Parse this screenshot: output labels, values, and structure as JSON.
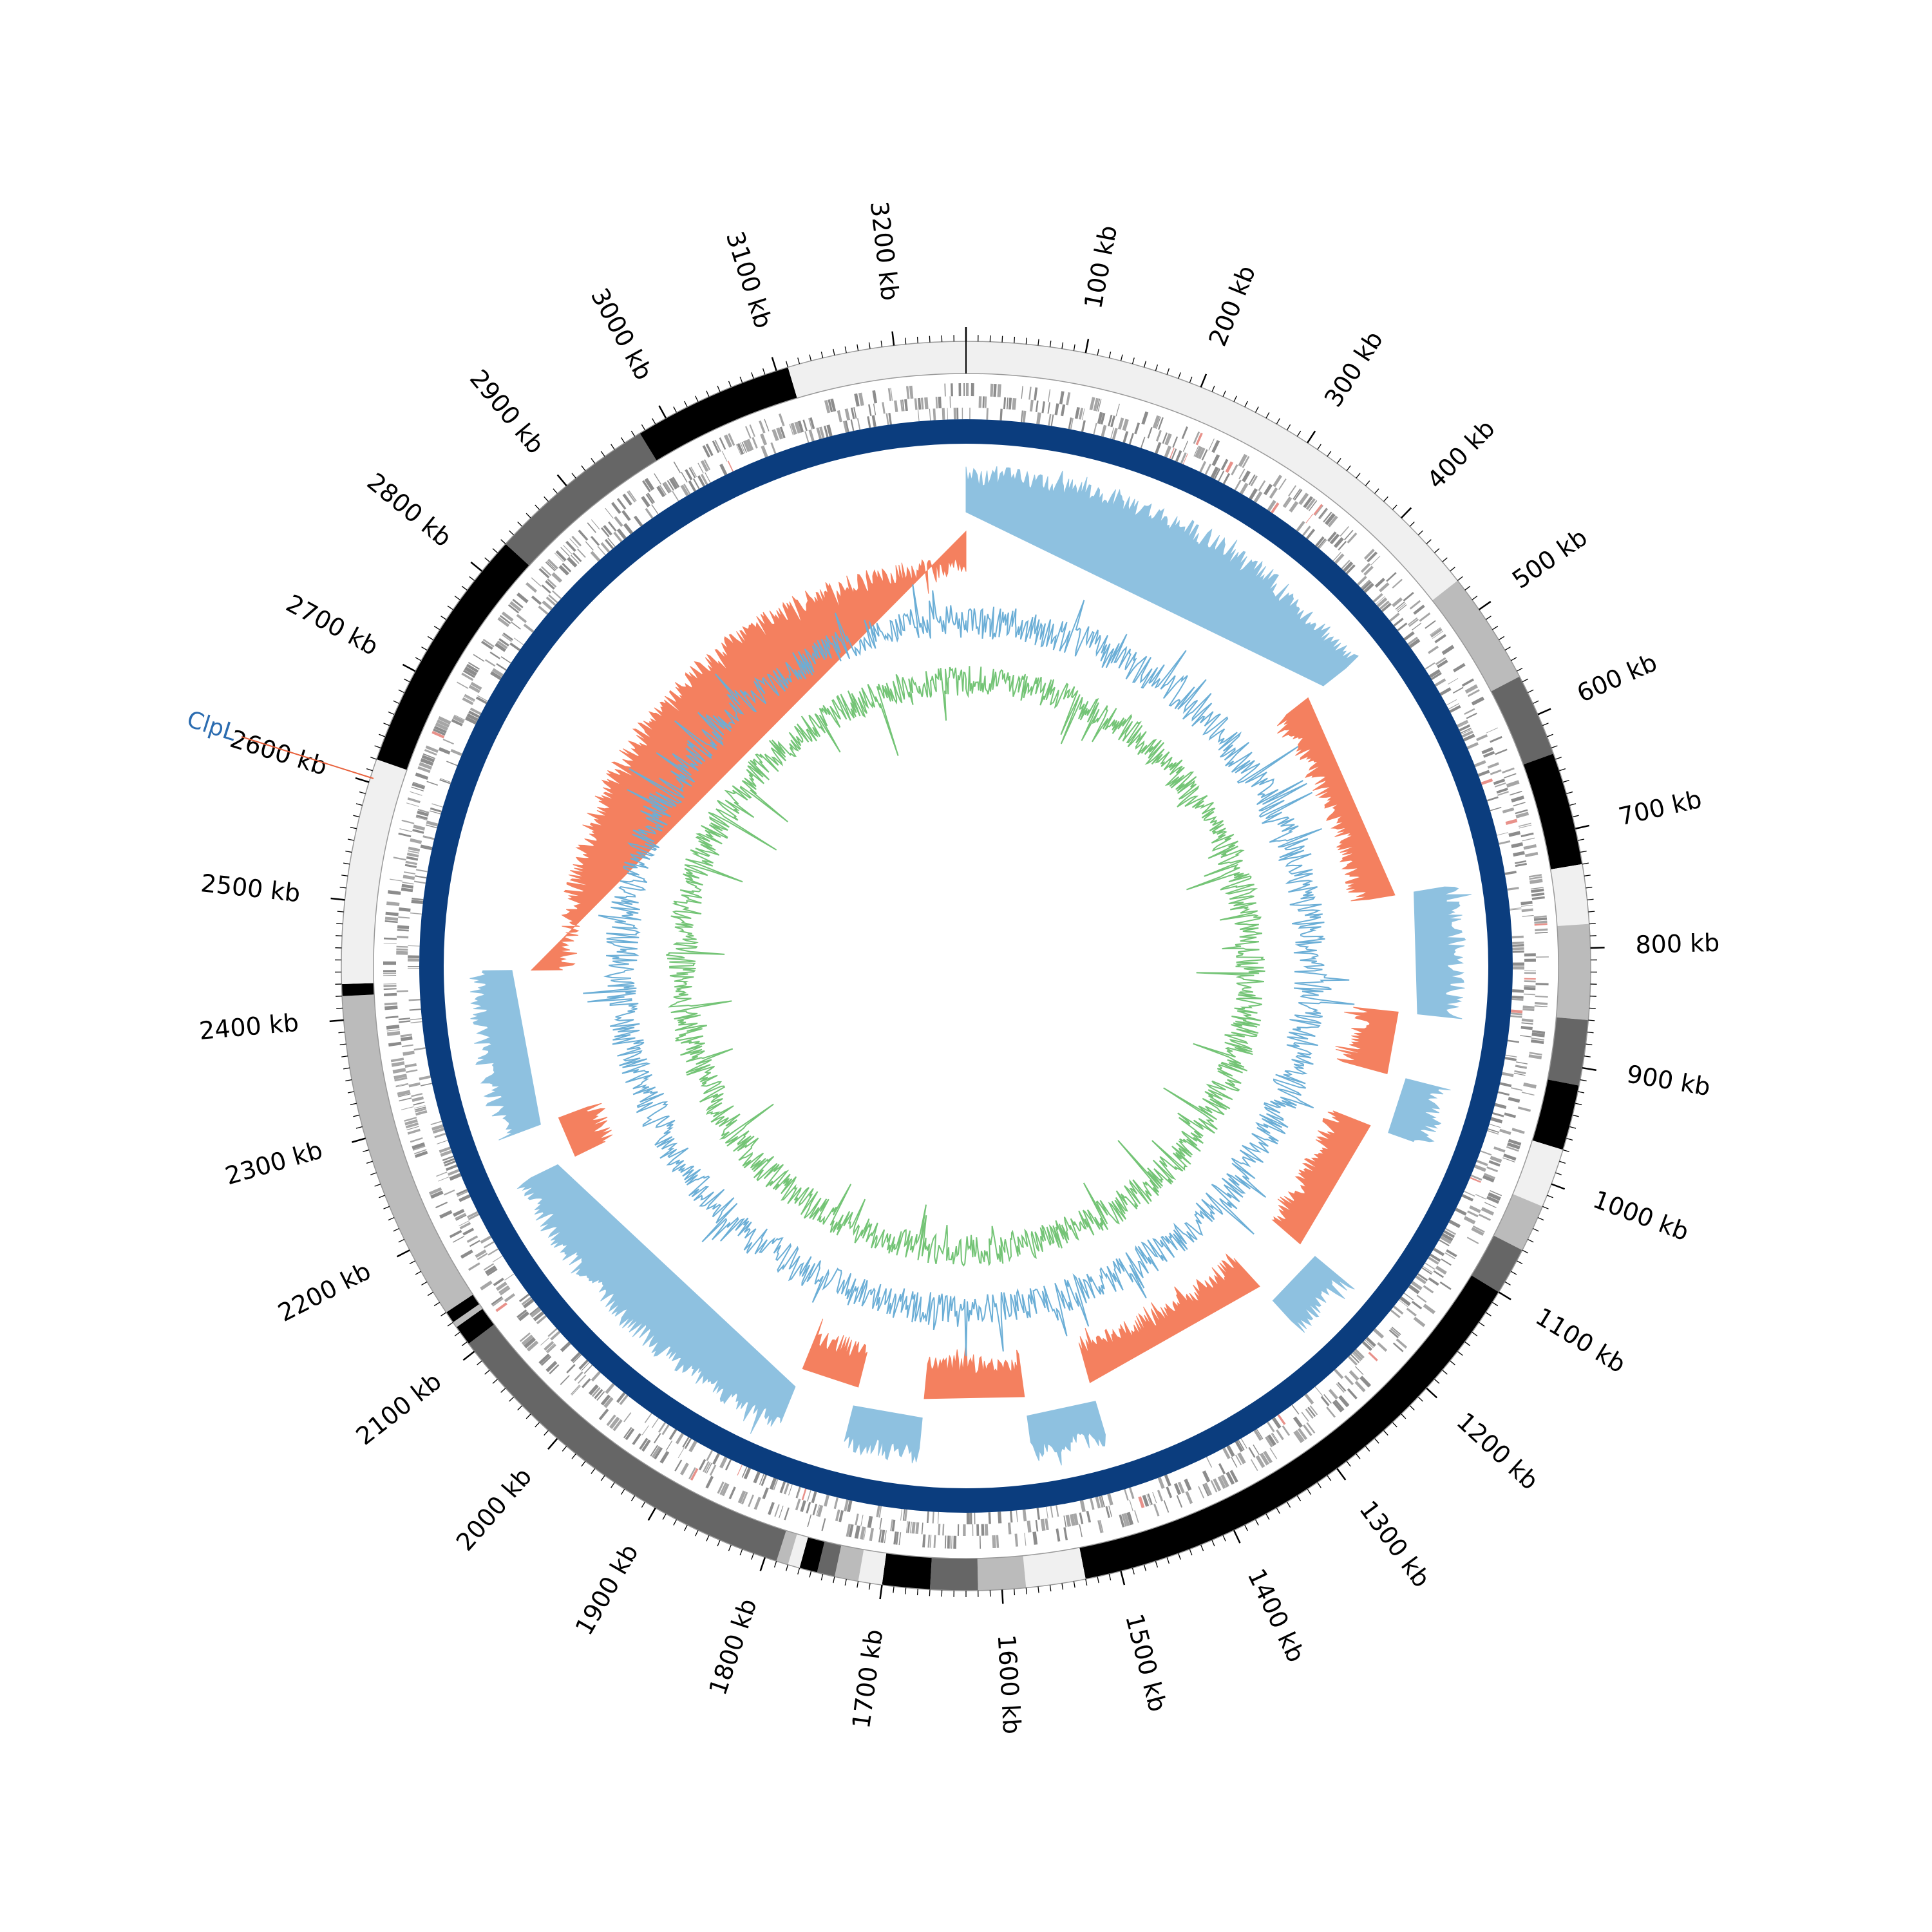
{
  "genome": {
    "length_kb": 3260,
    "tick_labels": [
      "100 kb",
      "200 kb",
      "300 kb",
      "400 kb",
      "500 kb",
      "600 kb",
      "700 kb",
      "800 kb",
      "900 kb",
      "1000 kb",
      "1100 kb",
      "1200 kb",
      "1300 kb",
      "1400 kb",
      "1500 kb",
      "1600 kb",
      "1700 kb",
      "1800 kb",
      "1900 kb",
      "2000 kb",
      "2100 kb",
      "2200 kb",
      "2300 kb",
      "2400 kb",
      "2500 kb",
      "2600 kb",
      "2700 kb",
      "2800 kb",
      "2900 kb",
      "3000 kb",
      "3100 kb",
      "3200 kb"
    ],
    "tick_positions_kb": [
      100,
      200,
      300,
      400,
      500,
      600,
      700,
      800,
      900,
      1000,
      1100,
      1200,
      1300,
      1400,
      1500,
      1600,
      1700,
      1800,
      1900,
      2000,
      2100,
      2200,
      2300,
      2400,
      2500,
      2600,
      2700,
      2800,
      2900,
      3000,
      3100,
      3200
    ]
  },
  "karyotype_bands": [
    {
      "start": 0,
      "end": 470,
      "color": "#f0f0f0"
    },
    {
      "start": 470,
      "end": 565,
      "color": "#bbbbbb"
    },
    {
      "start": 565,
      "end": 635,
      "color": "#666666"
    },
    {
      "start": 635,
      "end": 730,
      "color": "#000000"
    },
    {
      "start": 730,
      "end": 780,
      "color": "#f0f0f0"
    },
    {
      "start": 780,
      "end": 860,
      "color": "#bbbbbb"
    },
    {
      "start": 860,
      "end": 915,
      "color": "#666666"
    },
    {
      "start": 915,
      "end": 970,
      "color": "#000000"
    },
    {
      "start": 970,
      "end": 1020,
      "color": "#f0f0f0"
    },
    {
      "start": 1020,
      "end": 1060,
      "color": "#bbbbbb"
    },
    {
      "start": 1060,
      "end": 1100,
      "color": "#666666"
    },
    {
      "start": 1100,
      "end": 1530,
      "color": "#000000"
    },
    {
      "start": 1530,
      "end": 1580,
      "color": "#f0f0f0"
    },
    {
      "start": 1580,
      "end": 1620,
      "color": "#bbbbbb"
    },
    {
      "start": 1620,
      "end": 1660,
      "color": "#666666"
    },
    {
      "start": 1660,
      "end": 1700,
      "color": "#000000"
    },
    {
      "start": 1700,
      "end": 1720,
      "color": "#f0f0f0"
    },
    {
      "start": 1720,
      "end": 1740,
      "color": "#bbbbbb"
    },
    {
      "start": 1740,
      "end": 1755,
      "color": "#666666"
    },
    {
      "start": 1755,
      "end": 1770,
      "color": "#000000"
    },
    {
      "start": 1770,
      "end": 1780,
      "color": "#f0f0f0"
    },
    {
      "start": 1780,
      "end": 1790,
      "color": "#bbbbbb"
    },
    {
      "start": 1790,
      "end": 2108,
      "color": "#666666"
    },
    {
      "start": 2108,
      "end": 2125,
      "color": "#000000"
    },
    {
      "start": 2125,
      "end": 2130,
      "color": "#bbbbbb"
    },
    {
      "start": 2130,
      "end": 2140,
      "color": "#000000"
    },
    {
      "start": 2140,
      "end": 2420,
      "color": "#bbbbbb"
    },
    {
      "start": 2420,
      "end": 2430,
      "color": "#000000"
    },
    {
      "start": 2430,
      "end": 2620,
      "color": "#f0f0f0"
    },
    {
      "start": 2620,
      "end": 2830,
      "color": "#000000"
    },
    {
      "start": 2830,
      "end": 2975,
      "color": "#666666"
    },
    {
      "start": 2975,
      "end": 3110,
      "color": "#000000"
    },
    {
      "start": 3110,
      "end": 3260,
      "color": "#f0f0f0"
    }
  ],
  "skew_sign_segments": [
    {
      "start": 0,
      "end": 470,
      "sign": "positive"
    },
    {
      "start": 470,
      "end": 730,
      "sign": "negative"
    },
    {
      "start": 730,
      "end": 870,
      "sign": "positive"
    },
    {
      "start": 870,
      "end": 945,
      "sign": "negative"
    },
    {
      "start": 945,
      "end": 1010,
      "sign": "positive"
    },
    {
      "start": 1010,
      "end": 1175,
      "sign": "negative"
    },
    {
      "start": 1175,
      "end": 1245,
      "sign": "positive"
    },
    {
      "start": 1245,
      "end": 1480,
      "sign": "negative"
    },
    {
      "start": 1480,
      "end": 1560,
      "sign": "positive"
    },
    {
      "start": 1560,
      "end": 1680,
      "sign": "negative"
    },
    {
      "start": 1680,
      "end": 1760,
      "sign": "positive"
    },
    {
      "start": 1760,
      "end": 1830,
      "sign": "negative"
    },
    {
      "start": 1830,
      "end": 2210,
      "sign": "positive"
    },
    {
      "start": 2210,
      "end": 2260,
      "sign": "negative"
    },
    {
      "start": 2260,
      "end": 2440,
      "sign": "positive"
    },
    {
      "start": 2440,
      "end": 3260,
      "sign": "negative"
    }
  ],
  "highlighted_gene": {
    "label": "ClpL",
    "position_kb": 2604,
    "label_color": "#2b6cb0",
    "line_color": "#e8613c"
  },
  "colors": {
    "ring_blue": "#0b3d7e",
    "gene_gray": "#8c8c8c",
    "skew_positive": "#8ec1e0",
    "skew_negative": "#f4805f",
    "gc_outer": "#6baed6",
    "gc_inner": "#74c476",
    "tick": "#000000"
  }
}
